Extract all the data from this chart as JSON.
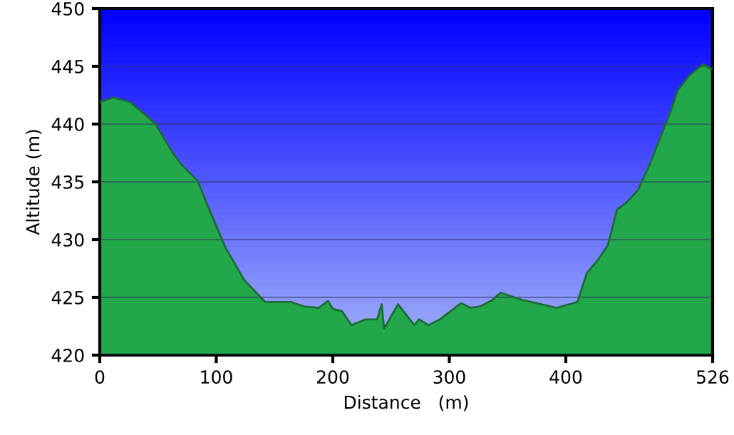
{
  "chart_data": {
    "type": "area",
    "xlabel": "Distance   (m)",
    "ylabel": "Altitude (m)",
    "x": [
      0,
      12,
      26,
      38,
      48,
      62,
      70,
      84,
      94,
      108,
      124,
      142,
      164,
      176,
      188,
      196,
      200,
      208,
      216,
      228,
      238,
      242,
      244,
      256,
      270,
      274,
      282,
      292,
      310,
      318,
      326,
      336,
      344,
      362,
      392,
      410,
      418,
      428,
      436,
      444,
      452,
      462,
      472,
      484,
      490,
      496,
      506,
      518,
      524,
      526
    ],
    "series": [
      {
        "color": "#22a84a",
        "values": [
          441.9,
          442.3,
          441.9,
          440.9,
          440.0,
          437.6,
          436.5,
          435.1,
          432.6,
          429.3,
          426.5,
          424.6,
          424.6,
          424.2,
          424.1,
          424.7,
          424.0,
          423.8,
          422.6,
          423.1,
          423.1,
          424.4,
          422.3,
          424.4,
          422.6,
          423.1,
          422.6,
          423.1,
          424.5,
          424.1,
          424.2,
          424.7,
          425.4,
          424.8,
          424.1,
          424.6,
          427.1,
          428.3,
          429.5,
          432.6,
          433.2,
          434.3,
          436.5,
          439.6,
          441.1,
          442.9,
          444.2,
          445.2,
          444.8,
          444.8
        ]
      }
    ],
    "xlim": [
      0,
      526
    ],
    "xticks": [
      0,
      100,
      200,
      300,
      400,
      526
    ],
    "ylim": [
      420,
      450
    ],
    "yticks": [
      420,
      425,
      430,
      435,
      440,
      445,
      450
    ],
    "grid": "y",
    "legend": false
  }
}
